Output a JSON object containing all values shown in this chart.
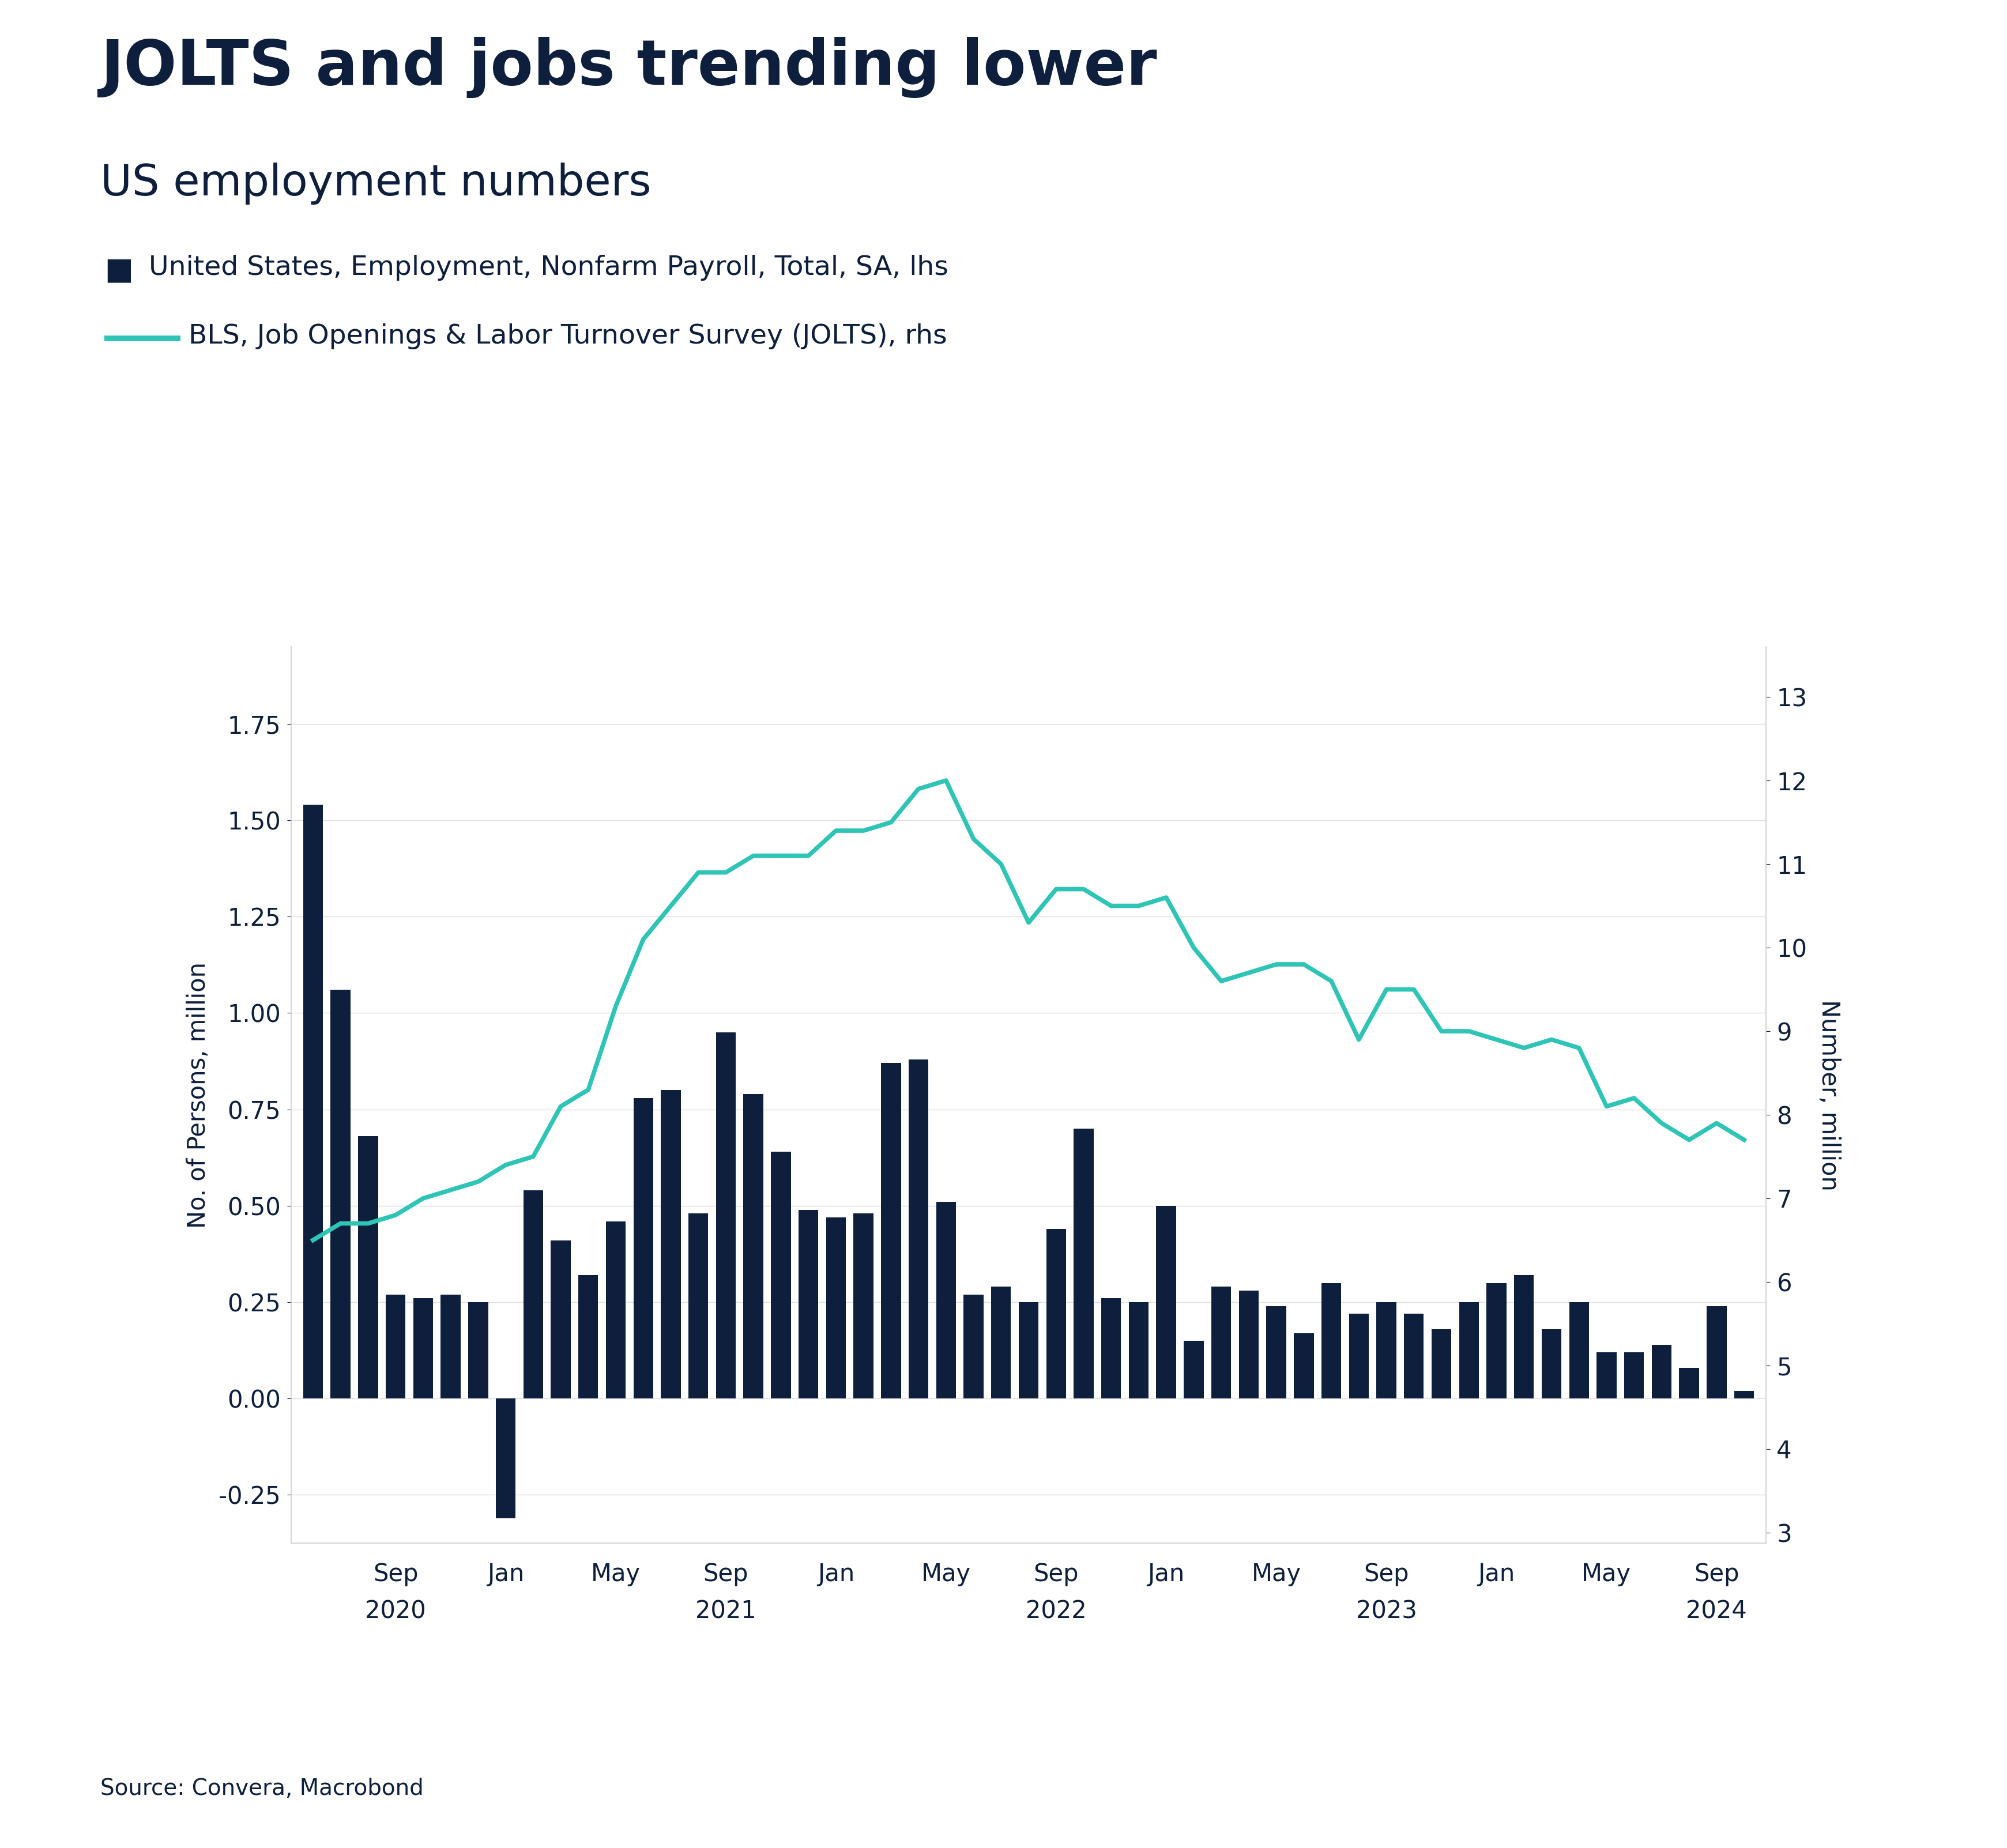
{
  "title": "JOLTS and jobs trending lower",
  "subtitle": "US employment numbers",
  "legend1": "United States, Employment, Nonfarm Payroll, Total, SA, lhs",
  "legend2": "BLS, Job Openings & Labor Turnover Survey (JOLTS), rhs",
  "ylabel_left": "No. of Persons, million",
  "ylabel_right": "Number, million",
  "source": "Source: Convera, Macrobond",
  "title_color": "#0d1f3c",
  "bar_color": "#0d1f3c",
  "line_color": "#2ec4b6",
  "bg_color": "#ffffff",
  "ylim_left": [
    -0.375,
    1.95
  ],
  "ylim_right": [
    2.875,
    13.6
  ],
  "yticks_left": [
    -0.25,
    0.0,
    0.25,
    0.5,
    0.75,
    1.0,
    1.25,
    1.5,
    1.75
  ],
  "yticks_right": [
    3,
    4,
    5,
    6,
    7,
    8,
    9,
    10,
    11,
    12,
    13
  ],
  "bar_values": [
    1.54,
    1.06,
    0.68,
    0.27,
    0.26,
    0.27,
    0.25,
    -0.31,
    0.54,
    0.41,
    0.32,
    0.46,
    0.78,
    0.8,
    0.48,
    0.95,
    0.79,
    0.64,
    0.49,
    0.47,
    0.48,
    0.87,
    0.88,
    0.51,
    0.27,
    0.29,
    0.25,
    0.44,
    0.7,
    0.26,
    0.25,
    0.5,
    0.15,
    0.29,
    0.28,
    0.24,
    0.17,
    0.3,
    0.22,
    0.25,
    0.22,
    0.18,
    0.25,
    0.3,
    0.32,
    0.18,
    0.25,
    0.12,
    0.12,
    0.14,
    0.08,
    0.24,
    0.02
  ],
  "line_values": [
    6.5,
    6.7,
    6.7,
    6.8,
    7.0,
    7.1,
    7.2,
    7.4,
    7.5,
    8.1,
    8.3,
    9.3,
    10.1,
    10.5,
    10.9,
    10.9,
    11.1,
    11.1,
    11.1,
    11.4,
    11.4,
    11.5,
    11.9,
    12.0,
    11.3,
    11.0,
    10.3,
    10.7,
    10.7,
    10.5,
    10.5,
    10.6,
    10.0,
    9.6,
    9.7,
    9.8,
    9.8,
    9.6,
    8.9,
    9.5,
    9.5,
    9.0,
    9.0,
    8.9,
    8.8,
    8.9,
    8.8,
    8.1,
    8.2,
    7.9,
    7.7,
    7.9,
    7.7
  ],
  "xtick_month_idx": [
    3,
    7,
    11,
    15,
    19,
    23,
    27,
    31,
    35,
    39,
    43,
    47,
    51
  ],
  "xtick_months": [
    "Sep",
    "Jan",
    "May",
    "Sep",
    "Jan",
    "May",
    "Sep",
    "Jan",
    "May",
    "Sep",
    "Jan",
    "May",
    "Sep"
  ],
  "xtick_year_idx": [
    3,
    15,
    27,
    39,
    51
  ],
  "xtick_years": [
    "2020",
    "2021",
    "2022",
    "2023",
    "2024"
  ]
}
